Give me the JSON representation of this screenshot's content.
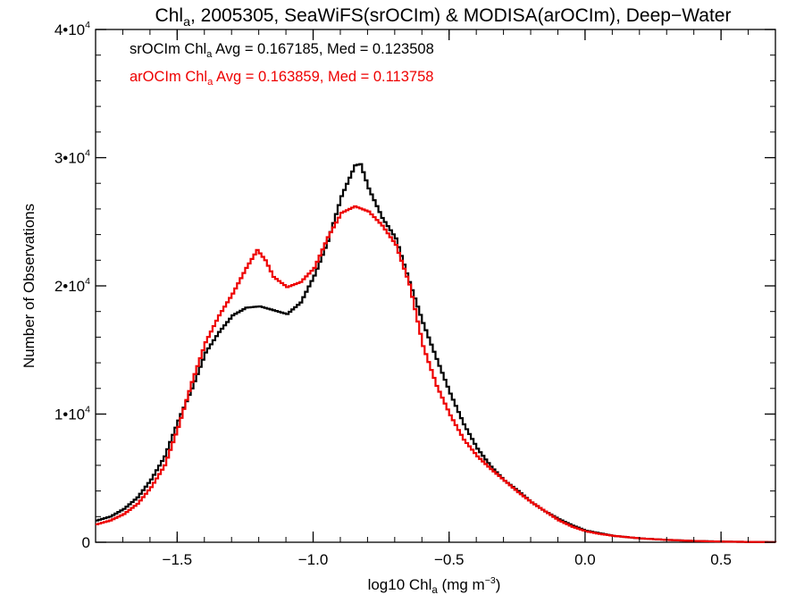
{
  "title": {
    "pre": "Chl",
    "sub": "a",
    "post": ", 2005305, SeaWiFS(srOCIm) & MODISA(arOCIm), Deep−Water"
  },
  "stats": [
    {
      "pre": "srOCIm Chl",
      "sub": "a",
      "post": " Avg = 0.167185, Med = 0.123508",
      "color": "#000000"
    },
    {
      "pre": "arOCIm Chl",
      "sub": "a",
      "post": " Avg = 0.163859, Med = 0.113758",
      "color": "#ee0000"
    }
  ],
  "chart_data": {
    "type": "line",
    "title": "Chla, 2005305, SeaWiFS(srOCIm) & MODISA(arOCIm), Deep-Water",
    "xlabel": {
      "pre": "log10 Chl",
      "sub": "a",
      "post": " (mg m",
      "sup": "−3",
      "tail": ")"
    },
    "ylabel": "Number of Observations",
    "xlim": [
      -1.8,
      0.7
    ],
    "ylim": [
      0,
      40000
    ],
    "x_ticks": [
      {
        "value": -1.5,
        "label": "−1.5"
      },
      {
        "value": -1.0,
        "label": "−1.0"
      },
      {
        "value": -0.5,
        "label": "−0.5"
      },
      {
        "value": 0.0,
        "label": "0.0"
      },
      {
        "value": 0.5,
        "label": "0.5"
      }
    ],
    "y_ticks": [
      {
        "value": 0,
        "mant": "0",
        "exp": ""
      },
      {
        "value": 10000,
        "mant": "1•10",
        "exp": "4"
      },
      {
        "value": 20000,
        "mant": "2•10",
        "exp": "4"
      },
      {
        "value": 30000,
        "mant": "3•10",
        "exp": "4"
      },
      {
        "value": 40000,
        "mant": "4•10",
        "exp": "4"
      }
    ],
    "x_minor_step": 0.1,
    "y_minor_step": 2000,
    "series": [
      {
        "name": "srOCIm",
        "color": "#000000",
        "x": [
          -1.8,
          -1.75,
          -1.7,
          -1.65,
          -1.6,
          -1.55,
          -1.5,
          -1.45,
          -1.4,
          -1.35,
          -1.3,
          -1.25,
          -1.2,
          -1.15,
          -1.1,
          -1.05,
          -1.0,
          -0.95,
          -0.9,
          -0.85,
          -0.83,
          -0.8,
          -0.75,
          -0.7,
          -0.65,
          -0.6,
          -0.55,
          -0.5,
          -0.45,
          -0.4,
          -0.35,
          -0.3,
          -0.25,
          -0.2,
          -0.15,
          -0.1,
          -0.05,
          0.0,
          0.05,
          0.1,
          0.2,
          0.3,
          0.4,
          0.5,
          0.6,
          0.7
        ],
        "y": [
          1700,
          2000,
          2600,
          3500,
          4900,
          6700,
          9500,
          12000,
          14800,
          16400,
          17700,
          18300,
          18400,
          18100,
          17800,
          18700,
          20800,
          23500,
          27000,
          29400,
          29500,
          27600,
          25300,
          23700,
          20300,
          17100,
          14300,
          11600,
          9200,
          7300,
          5900,
          4800,
          4000,
          3100,
          2400,
          1800,
          1300,
          900,
          700,
          500,
          300,
          180,
          100,
          50,
          25,
          10
        ]
      },
      {
        "name": "arOCIm",
        "color": "#ee0000",
        "x": [
          -1.8,
          -1.75,
          -1.7,
          -1.65,
          -1.6,
          -1.55,
          -1.5,
          -1.45,
          -1.4,
          -1.35,
          -1.3,
          -1.25,
          -1.21,
          -1.18,
          -1.15,
          -1.1,
          -1.05,
          -1.0,
          -0.95,
          -0.9,
          -0.85,
          -0.8,
          -0.75,
          -0.7,
          -0.65,
          -0.6,
          -0.55,
          -0.5,
          -0.45,
          -0.4,
          -0.35,
          -0.3,
          -0.25,
          -0.2,
          -0.15,
          -0.1,
          -0.05,
          0.0,
          0.05,
          0.1,
          0.2,
          0.3,
          0.4,
          0.5,
          0.6,
          0.7
        ],
        "y": [
          1400,
          1700,
          2200,
          3000,
          4300,
          6000,
          9000,
          12500,
          15600,
          17700,
          19400,
          21400,
          22800,
          22000,
          20700,
          19900,
          20300,
          21400,
          23800,
          25700,
          26200,
          25800,
          24700,
          23200,
          20100,
          15300,
          12200,
          9900,
          8000,
          6700,
          5700,
          4800,
          3900,
          3100,
          2400,
          1700,
          1200,
          850,
          650,
          500,
          300,
          180,
          100,
          50,
          25,
          10
        ]
      }
    ]
  }
}
